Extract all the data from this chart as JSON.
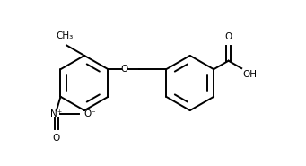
{
  "background_color": "#ffffff",
  "line_color": "#000000",
  "line_width": 1.4,
  "font_size": 7.5,
  "fig_width": 3.41,
  "fig_height": 1.85,
  "dpi": 100,
  "xlim": [
    -0.5,
    8.5
  ],
  "ylim": [
    -2.5,
    3.5
  ]
}
